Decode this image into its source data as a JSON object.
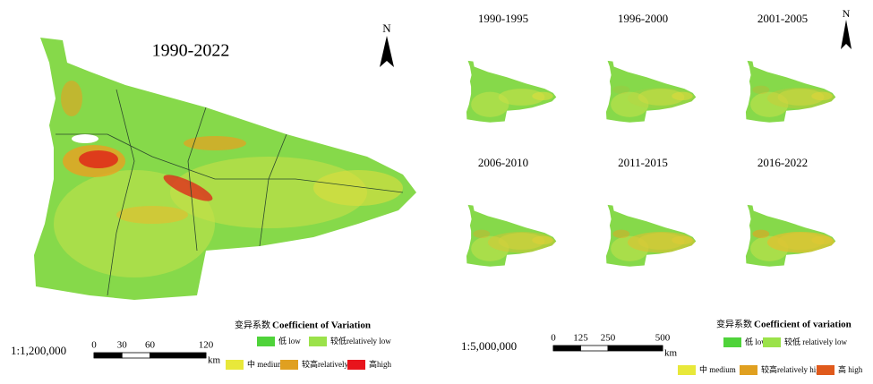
{
  "main_map": {
    "title": "1990-2022",
    "north": "N",
    "scale": "1:1,200,000",
    "scale_bar": {
      "ticks": [
        0,
        30,
        60,
        120
      ],
      "unit": "km"
    }
  },
  "period_maps": {
    "north": "N",
    "titles": [
      "1990-1995",
      "1996-2000",
      "2001-2005",
      "2006-2010",
      "2011-2015",
      "2016-2022"
    ],
    "scale": "1:5,000,000",
    "scale_bar": {
      "ticks": [
        0,
        125,
        250,
        500
      ],
      "unit": "km"
    }
  },
  "legend_left": {
    "title_zh": "变异系数",
    "title_en": "Coefficient of Variation",
    "items": [
      {
        "label": "低 low",
        "color": "#4fd33a"
      },
      {
        "label": "较低relatively low",
        "color": "#9be24a"
      },
      {
        "label": "中 medium",
        "color": "#e8e83a"
      },
      {
        "label": "较高relatively high",
        "color": "#e0a020"
      },
      {
        "label": "高high",
        "color": "#e8141c"
      }
    ]
  },
  "legend_right": {
    "title_zh": "变异系数",
    "title_en": "Coefficient of variation",
    "items": [
      {
        "label": "低 low",
        "color": "#4fd33a"
      },
      {
        "label": "较低 relatively low",
        "color": "#9be24a"
      },
      {
        "label": "中 medium",
        "color": "#e8e83a"
      },
      {
        "label": "较高relatively high",
        "color": "#e0a020"
      },
      {
        "label": "高 high",
        "color": "#e05a1c"
      }
    ]
  }
}
